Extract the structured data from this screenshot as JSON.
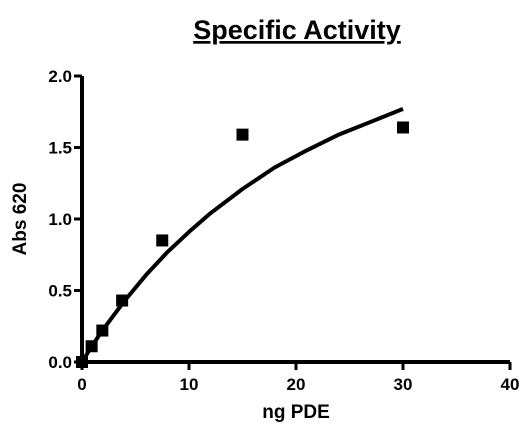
{
  "chart_data": {
    "type": "scatter",
    "title": "Specific Activity",
    "xlabel": "ng PDE",
    "ylabel": "Abs 620",
    "xlim": [
      0,
      40
    ],
    "ylim": [
      0,
      2.0
    ],
    "xticks": [
      "0",
      "10",
      "20",
      "30",
      "40"
    ],
    "yticks": [
      "0.0",
      "0.5",
      "1.0",
      "1.5",
      "2.0"
    ],
    "grid": false,
    "series": [
      {
        "marker": "square",
        "color": "#000000",
        "points": [
          {
            "x": 0,
            "y": 0.0
          },
          {
            "x": 0.9,
            "y": 0.11
          },
          {
            "x": 1.9,
            "y": 0.22
          },
          {
            "x": 3.75,
            "y": 0.43
          },
          {
            "x": 7.5,
            "y": 0.85
          },
          {
            "x": 15,
            "y": 1.59
          },
          {
            "x": 30,
            "y": 1.64
          }
        ]
      }
    ],
    "fit_curve": {
      "color": "#000000",
      "x": [
        0,
        1,
        2,
        4,
        6,
        8,
        10,
        12,
        15,
        18,
        21,
        24,
        27,
        30
      ],
      "y": [
        0,
        0.12,
        0.23,
        0.43,
        0.61,
        0.77,
        0.91,
        1.04,
        1.21,
        1.36,
        1.48,
        1.59,
        1.68,
        1.77
      ]
    }
  }
}
